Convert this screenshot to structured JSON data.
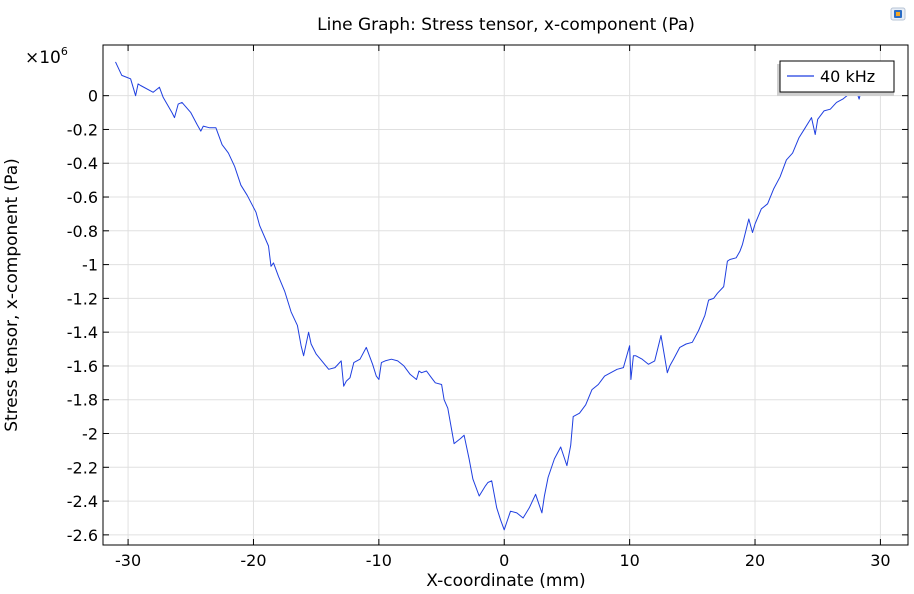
{
  "window": {
    "icon": "app-logo-icon"
  },
  "chart_data": {
    "type": "line",
    "title": "Line Graph: Stress tensor, x-component (Pa)",
    "xlabel": "X-coordinate (mm)",
    "ylabel": "Stress tensor, x-component (Pa)",
    "y_multiplier": {
      "base": "×10",
      "exponent": "6"
    },
    "xlim": [
      -32.0,
      32.2
    ],
    "ylim": [
      -2.66,
      0.3
    ],
    "x_ticks": [
      -30,
      -20,
      -10,
      0,
      10,
      20,
      30
    ],
    "x_tick_labels": [
      "-30",
      "-20",
      "-10",
      "0",
      "10",
      "20",
      "30"
    ],
    "y_ticks": [
      0,
      -0.2,
      -0.4,
      -0.6,
      -0.8,
      -1,
      -1.2,
      -1.4,
      -1.6,
      -1.8,
      -2,
      -2.2,
      -2.4,
      -2.6
    ],
    "y_tick_labels": [
      "0",
      "-0.2",
      "-0.4",
      "-0.6",
      "-0.8",
      "-1",
      "-1.2",
      "-1.4",
      "-1.6",
      "-1.8",
      "-2",
      "-2.2",
      "-2.4",
      "-2.6"
    ],
    "grid": true,
    "legend_position": "top-right",
    "series": [
      {
        "name": "40 kHz",
        "color": "#1f3fe0",
        "x": [
          -31.0,
          -30.5,
          -29.8,
          -29.4,
          -29.2,
          -29.0,
          -28.0,
          -27.5,
          -27.2,
          -26.5,
          -26.3,
          -26.0,
          -25.7,
          -25.0,
          -24.5,
          -24.2,
          -24.0,
          -23.5,
          -23.0,
          -22.5,
          -22.2,
          -22.0,
          -21.5,
          -21.0,
          -20.5,
          -19.8,
          -19.5,
          -18.8,
          -18.6,
          -18.4,
          -18.0,
          -17.5,
          -17.0,
          -16.5,
          -16.2,
          -16.0,
          -15.6,
          -15.4,
          -15.0,
          -14.0,
          -13.5,
          -13.0,
          -12.8,
          -12.6,
          -12.3,
          -12.0,
          -11.5,
          -11.0,
          -10.5,
          -10.2,
          -10.0,
          -9.8,
          -9.5,
          -9.0,
          -8.5,
          -8.0,
          -7.5,
          -7.0,
          -6.8,
          -6.6,
          -6.2,
          -5.8,
          -5.5,
          -5.0,
          -4.8,
          -4.5,
          -4.0,
          -3.5,
          -3.2,
          -2.8,
          -2.5,
          -2.0,
          -1.5,
          -1.3,
          -1.0,
          -0.6,
          -0.3,
          0.0,
          0.5,
          1.0,
          1.5,
          2.0,
          2.5,
          3.0,
          3.2,
          3.5,
          4.0,
          4.5,
          5.0,
          5.3,
          5.5,
          6.0,
          6.5,
          7.0,
          7.5,
          8.0,
          8.5,
          9.0,
          9.5,
          10.0,
          10.1,
          10.3,
          10.5,
          11.0,
          11.5,
          12.0,
          12.5,
          13.0,
          13.2,
          13.5,
          14.0,
          14.5,
          15.0,
          15.5,
          16.0,
          16.3,
          16.7,
          17.0,
          17.5,
          17.8,
          18.0,
          18.5,
          18.8,
          19.0,
          19.5,
          19.8,
          20.0,
          20.5,
          21.0,
          21.5,
          22.0,
          22.5,
          23.0,
          23.5,
          24.0,
          24.5,
          24.8,
          25.0,
          25.5,
          26.0,
          26.5,
          27.0,
          27.5,
          27.8,
          28.0,
          28.3,
          28.6,
          29.0,
          29.5,
          30.0,
          30.3
        ],
        "y": [
          0.2,
          0.12,
          0.1,
          0.0,
          0.07,
          0.06,
          0.02,
          0.05,
          -0.01,
          -0.1,
          -0.13,
          -0.05,
          -0.04,
          -0.1,
          -0.17,
          -0.21,
          -0.18,
          -0.19,
          -0.19,
          -0.29,
          -0.32,
          -0.34,
          -0.42,
          -0.53,
          -0.59,
          -0.69,
          -0.77,
          -0.89,
          -1.01,
          -0.99,
          -1.07,
          -1.16,
          -1.28,
          -1.36,
          -1.48,
          -1.54,
          -1.4,
          -1.47,
          -1.53,
          -1.62,
          -1.61,
          -1.57,
          -1.72,
          -1.69,
          -1.67,
          -1.58,
          -1.56,
          -1.49,
          -1.59,
          -1.66,
          -1.68,
          -1.58,
          -1.57,
          -1.56,
          -1.57,
          -1.6,
          -1.65,
          -1.68,
          -1.63,
          -1.64,
          -1.63,
          -1.67,
          -1.7,
          -1.71,
          -1.8,
          -1.85,
          -2.06,
          -2.03,
          -2.01,
          -2.15,
          -2.27,
          -2.37,
          -2.31,
          -2.29,
          -2.28,
          -2.44,
          -2.51,
          -2.57,
          -2.46,
          -2.47,
          -2.5,
          -2.44,
          -2.36,
          -2.47,
          -2.37,
          -2.26,
          -2.15,
          -2.08,
          -2.19,
          -2.07,
          -1.9,
          -1.88,
          -1.83,
          -1.74,
          -1.71,
          -1.66,
          -1.64,
          -1.62,
          -1.61,
          -1.48,
          -1.68,
          -1.54,
          -1.54,
          -1.56,
          -1.59,
          -1.57,
          -1.42,
          -1.64,
          -1.6,
          -1.56,
          -1.49,
          -1.47,
          -1.46,
          -1.39,
          -1.3,
          -1.21,
          -1.2,
          -1.17,
          -1.13,
          -0.98,
          -0.97,
          -0.96,
          -0.92,
          -0.88,
          -0.73,
          -0.81,
          -0.76,
          -0.67,
          -0.64,
          -0.55,
          -0.48,
          -0.38,
          -0.34,
          -0.25,
          -0.19,
          -0.13,
          -0.23,
          -0.14,
          -0.09,
          -0.08,
          -0.04,
          -0.02,
          0.01,
          0.03,
          0.05,
          -0.02,
          0.07,
          0.12,
          0.05,
          0.18,
          0.2
        ]
      }
    ]
  }
}
